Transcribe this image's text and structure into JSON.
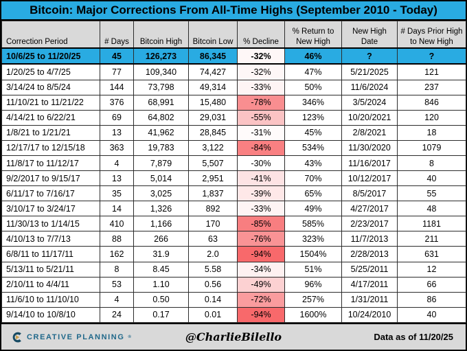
{
  "title": "Bitcoin: Major Corrections From All-Time Highs (September 2010 - Today)",
  "colors": {
    "accent_blue": "#29ABE2",
    "header_gray": "#D9D9D9",
    "decline_scale_max_red": "#F8696B",
    "brand_teal": "#20688A",
    "brand_mark_navy": "#164A63",
    "brand_mark_gold": "#C9A04E"
  },
  "table": {
    "columns": [
      "Correction Period",
      "# Days",
      "Bitcoin High",
      "Bitcoin Low",
      "% Decline",
      "% Return to\nNew High",
      "New High\nDate",
      "# Days Prior High\nto New High"
    ],
    "rows": [
      {
        "period": "10/6/25 to 11/20/25",
        "days": "45",
        "high": "126,273",
        "low": "86,345",
        "decline": "-32%",
        "decline_color": "#FEF7F7",
        "return_pct": "46%",
        "new_high_date": "?",
        "days_prior": "?",
        "highlight": true
      },
      {
        "period": "1/20/25 to 4/7/25",
        "days": "77",
        "high": "109,340",
        "low": "74,427",
        "decline": "-32%",
        "decline_color": "#FEF7F7",
        "return_pct": "47%",
        "new_high_date": "5/21/2025",
        "days_prior": "121",
        "highlight": false
      },
      {
        "period": "3/14/24 to 8/5/24",
        "days": "144",
        "high": "73,798",
        "low": "49,314",
        "decline": "-33%",
        "decline_color": "#FEF4F4",
        "return_pct": "50%",
        "new_high_date": "11/6/2024",
        "days_prior": "237",
        "highlight": false
      },
      {
        "period": "11/10/21 to 11/21/22",
        "days": "376",
        "high": "68,991",
        "low": "15,480",
        "decline": "-78%",
        "decline_color": "#F98E90",
        "return_pct": "346%",
        "new_high_date": "3/5/2024",
        "days_prior": "846",
        "highlight": false
      },
      {
        "period": "4/14/21 to 6/22/21",
        "days": "69",
        "high": "64,802",
        "low": "29,031",
        "decline": "-55%",
        "decline_color": "#FBC3C4",
        "return_pct": "123%",
        "new_high_date": "10/20/2021",
        "days_prior": "120",
        "highlight": false
      },
      {
        "period": "1/8/21 to 1/21/21",
        "days": "13",
        "high": "41,962",
        "low": "28,845",
        "decline": "-31%",
        "decline_color": "#FFFBFB",
        "return_pct": "45%",
        "new_high_date": "2/8/2021",
        "days_prior": "18",
        "highlight": false
      },
      {
        "period": "12/17/17 to 12/15/18",
        "days": "363",
        "high": "19,783",
        "low": "3,122",
        "decline": "-84%",
        "decline_color": "#F98082",
        "return_pct": "534%",
        "new_high_date": "11/30/2020",
        "days_prior": "1079",
        "highlight": false
      },
      {
        "period": "11/8/17 to 11/12/17",
        "days": "4",
        "high": "7,879",
        "low": "5,507",
        "decline": "-30%",
        "decline_color": "#FFFFFF",
        "return_pct": "43%",
        "new_high_date": "11/16/2017",
        "days_prior": "8",
        "highlight": false
      },
      {
        "period": "9/2/2017 to 9/15/17",
        "days": "13",
        "high": "5,014",
        "low": "2,951",
        "decline": "-41%",
        "decline_color": "#FDE3E4",
        "return_pct": "70%",
        "new_high_date": "10/12/2017",
        "days_prior": "40",
        "highlight": false
      },
      {
        "period": "6/11/17 to 7/16/17",
        "days": "35",
        "high": "3,025",
        "low": "1,837",
        "decline": "-39%",
        "decline_color": "#FEE8E8",
        "return_pct": "65%",
        "new_high_date": "8/5/2017",
        "days_prior": "55",
        "highlight": false
      },
      {
        "period": "3/10/17 to 3/24/17",
        "days": "14",
        "high": "1,326",
        "low": "892",
        "decline": "-33%",
        "decline_color": "#FEF4F4",
        "return_pct": "49%",
        "new_high_date": "4/27/2017",
        "days_prior": "48",
        "highlight": false
      },
      {
        "period": "11/30/13 to 1/14/15",
        "days": "410",
        "high": "1,166",
        "low": "170",
        "decline": "-85%",
        "decline_color": "#F87E80",
        "return_pct": "585%",
        "new_high_date": "2/23/2017",
        "days_prior": "1181",
        "highlight": false
      },
      {
        "period": "4/10/13 to 7/7/13",
        "days": "88",
        "high": "266",
        "low": "63",
        "decline": "-76%",
        "decline_color": "#F99395",
        "return_pct": "323%",
        "new_high_date": "11/7/2013",
        "days_prior": "211",
        "highlight": false
      },
      {
        "period": "6/8/11 to 11/17/11",
        "days": "162",
        "high": "31.9",
        "low": "2.0",
        "decline": "-94%",
        "decline_color": "#F8696B",
        "return_pct": "1504%",
        "new_high_date": "2/28/2013",
        "days_prior": "631",
        "highlight": false
      },
      {
        "period": "5/13/11 to 5/21/11",
        "days": "8",
        "high": "8.45",
        "low": "5.58",
        "decline": "-34%",
        "decline_color": "#FEF1F1",
        "return_pct": "51%",
        "new_high_date": "5/25/2011",
        "days_prior": "12",
        "highlight": false
      },
      {
        "period": "2/10/11 to 4/4/11",
        "days": "53",
        "high": "1.10",
        "low": "0.56",
        "decline": "-49%",
        "decline_color": "#FCD1D2",
        "return_pct": "96%",
        "new_high_date": "4/17/2011",
        "days_prior": "66",
        "highlight": false
      },
      {
        "period": "11/6/10 to 11/10/10",
        "days": "4",
        "high": "0.50",
        "low": "0.14",
        "decline": "-72%",
        "decline_color": "#FA9C9E",
        "return_pct": "257%",
        "new_high_date": "1/31/2011",
        "days_prior": "86",
        "highlight": false
      },
      {
        "period": "9/14/10 to 10/8/10",
        "days": "24",
        "high": "0.17",
        "low": "0.01",
        "decline": "-94%",
        "decline_color": "#F8696B",
        "return_pct": "1600%",
        "new_high_date": "10/24/2010",
        "days_prior": "40",
        "highlight": false
      }
    ]
  },
  "footer": {
    "brand": "CREATIVE PLANNING",
    "brand_mark": "®",
    "handle": "@CharlieBilello",
    "data_as_of": "Data as of 11/20/25"
  }
}
